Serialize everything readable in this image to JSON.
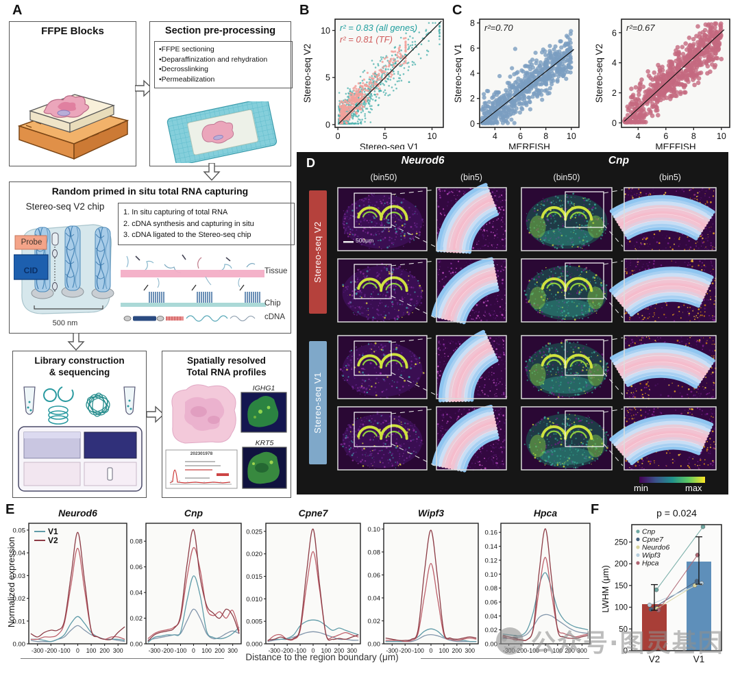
{
  "watermark": {
    "text": "公众号·图灵基因"
  },
  "panel_a": {
    "label": "A",
    "ffpe_title": "FFPE Blocks",
    "pre_title": "Section pre-processing",
    "pre_bullets": [
      "FFPE sectioning",
      "Deparaffinization and rehydration",
      "Decrosslinking",
      "Permeabilization"
    ],
    "capture_title": "Random primed in situ total RNA capturing",
    "chip_label": "Stereo-seq V2 chip",
    "probe_label": "Probe",
    "cid_label": "CID",
    "pitch_label": "500 nm",
    "steps": [
      "1. In situ capturing of total RNA",
      "2. cDNA synthesis and capturing in situ",
      "3. cDNA ligated to the Stereo-seq chip"
    ],
    "step_numbers": [
      "1",
      "2",
      "3"
    ],
    "tissue_label": "Tissue",
    "chip_line_label": "Chip",
    "cdna_label": "cDNA",
    "library_title1": "Library construction",
    "library_title2": "& sequencing",
    "profiles_title1": "Spatially resolved",
    "profiles_title2": "Total RNA profiles",
    "profile_gene1": "IGHG1",
    "profile_gene2": "KRT5",
    "qc_title": "202301978"
  },
  "panel_b": {
    "label": "B"
  },
  "panel_c": {
    "label": "C"
  },
  "panel_d": {
    "label": "D",
    "genes": [
      "Neurod6",
      "Cnp"
    ],
    "bin_headers": [
      "(bin50)",
      "(bin5)",
      "(bin50)",
      "(bin5)"
    ],
    "rows": [
      {
        "label": "Stereo-seq V2",
        "color": "#b5413c"
      },
      {
        "label": "Stereo-seq V1",
        "color": "#7fa8c9"
      }
    ],
    "scale_bar": "500μm",
    "cbar_min": "min",
    "cbar_max": "max"
  },
  "panel_e": {
    "label": "E",
    "ylabel": "Normalized expression",
    "xlabel": "Distance to the region boundary (μm)"
  },
  "panel_f": {
    "label": "F"
  },
  "chart_data": [
    {
      "id": "B",
      "type": "scatter",
      "xlabel": "Stereo-seq V1",
      "ylabel": "Stereo-seq V2",
      "xticks": [
        0,
        5,
        10
      ],
      "yticks": [
        0,
        5,
        10
      ],
      "xlim": [
        -0.3,
        11.2
      ],
      "ylim": [
        -0.3,
        11.2
      ],
      "annotations": [
        {
          "text": "r² = 0.83 (all genes)",
          "color": "#1f9e9e"
        },
        {
          "text": "r² = 0.81 (TF)",
          "color": "#cf5a5a"
        }
      ],
      "fit_line": [
        [
          0.1,
          0.1
        ],
        [
          11,
          11
        ]
      ],
      "series": [
        {
          "name": "all genes",
          "r2": 0.83,
          "color": "#4ab0ac",
          "n": 800,
          "dot": 1.3,
          "op": 0.75,
          "seed": 11
        },
        {
          "name": "TF",
          "r2": 0.81,
          "color": "#f2a19b",
          "n": 430,
          "dot": 1.6,
          "op": 0.85,
          "seed": 97
        }
      ]
    },
    {
      "id": "C1",
      "type": "scatter",
      "xlabel": "MERFISH",
      "ylabel": "Stereo-seq V1",
      "xticks": [
        4,
        6,
        8,
        10
      ],
      "yticks": [
        0,
        2,
        4,
        6,
        8
      ],
      "xlim": [
        2.8,
        10.6
      ],
      "ylim": [
        -0.3,
        8.3
      ],
      "annotations": [
        {
          "text": "r²=0.70",
          "color": "#222222"
        }
      ],
      "fit_line": [
        [
          2.9,
          0.05
        ],
        [
          10.2,
          5.9
        ]
      ],
      "series": [
        {
          "name": "genes",
          "r2": 0.7,
          "color": "#7b9dc0",
          "n": 620,
          "dot": 3.1,
          "op": 0.8,
          "seed": 5
        }
      ]
    },
    {
      "id": "C2",
      "type": "scatter",
      "xlabel": "MEFFISH",
      "ylabel": "Stereo-seq V2",
      "xticks": [
        4,
        6,
        8,
        10
      ],
      "yticks": [
        0,
        2,
        4,
        6
      ],
      "xlim": [
        2.8,
        10.6
      ],
      "ylim": [
        -0.3,
        6.9
      ],
      "annotations": [
        {
          "text": "r²=0.67",
          "color": "#222222"
        }
      ],
      "fit_line": [
        [
          3,
          0.1
        ],
        [
          10.2,
          6.2
        ]
      ],
      "series": [
        {
          "name": "genes",
          "r2": 0.67,
          "color": "#c4697f",
          "n": 680,
          "dot": 3.3,
          "op": 0.8,
          "seed": 23
        }
      ]
    },
    {
      "id": "E_Neurod6",
      "type": "line",
      "title": "Neurod6",
      "x": [
        -350,
        -300,
        -250,
        -200,
        -150,
        -100,
        -50,
        0,
        50,
        100,
        150,
        200,
        250,
        300,
        350
      ],
      "xticks": [
        -300,
        -200,
        -100,
        0,
        100,
        200,
        300
      ],
      "yticks": [
        0,
        0.01,
        0.02,
        0.03,
        0.04,
        0.05
      ],
      "ydec": 2,
      "ylim": [
        0,
        0.053
      ],
      "legend": [
        {
          "label": "V1",
          "color": "#5f9ba8"
        },
        {
          "label": "V2",
          "color": "#8c3b45"
        }
      ],
      "series": [
        {
          "name": "V1",
          "color": "#8295ab",
          "values": [
            0.0015,
            0.001,
            0.001,
            0.001,
            0.002,
            0.003,
            0.006,
            0.008,
            0.006,
            0.004,
            0.003,
            0.002,
            0.002,
            0.0015,
            0.001
          ]
        },
        {
          "name": "V1",
          "color": "#5f9ba8",
          "values": [
            0.002,
            0.002,
            0.0015,
            0.001,
            0.002,
            0.004,
            0.009,
            0.012,
            0.009,
            0.005,
            0.003,
            0.002,
            0.002,
            0.002,
            0.0015
          ]
        },
        {
          "name": "V2",
          "color": "#bd5f6a",
          "values": [
            0.002,
            0.002,
            0.003,
            0.003,
            0.004,
            0.009,
            0.026,
            0.042,
            0.024,
            0.006,
            0.003,
            0.002,
            0.003,
            0.003,
            0.002
          ]
        },
        {
          "name": "V2",
          "color": "#8c3b45",
          "values": [
            0.0045,
            0.003,
            0.005,
            0.006,
            0.006,
            0.01,
            0.03,
            0.049,
            0.028,
            0.006,
            0.003,
            0.002,
            0.002,
            0.005,
            0.0075
          ]
        }
      ]
    },
    {
      "id": "E_Cnp",
      "type": "line",
      "title": "Cnp",
      "x": [
        -350,
        -300,
        -250,
        -200,
        -150,
        -100,
        -50,
        0,
        50,
        100,
        150,
        200,
        250,
        300,
        350
      ],
      "xticks": [
        -300,
        -200,
        -100,
        0,
        100,
        200,
        300
      ],
      "yticks": [
        0,
        0.02,
        0.04,
        0.06,
        0.08
      ],
      "ydec": 2,
      "ylim": [
        0,
        0.094
      ],
      "series": [
        {
          "name": "V1",
          "color": "#8295ab",
          "values": [
            0.003,
            0.004,
            0.005,
            0.006,
            0.007,
            0.008,
            0.018,
            0.027,
            0.02,
            0.008,
            0.004,
            0.005,
            0.008,
            0.01,
            0.008
          ]
        },
        {
          "name": "V1",
          "color": "#5f9ba8",
          "values": [
            0.001,
            0.005,
            0.006,
            0.007,
            0.007,
            0.009,
            0.034,
            0.053,
            0.038,
            0.01,
            0.005,
            0.004,
            0.005,
            0.008,
            0.013
          ]
        },
        {
          "name": "V2",
          "color": "#bd5f6a",
          "values": [
            0.004,
            0.008,
            0.01,
            0.011,
            0.013,
            0.02,
            0.052,
            0.075,
            0.058,
            0.028,
            0.022,
            0.025,
            0.02,
            0.026,
            0.01
          ]
        },
        {
          "name": "V2",
          "color": "#8c3b45",
          "values": [
            0.002,
            0.007,
            0.009,
            0.01,
            0.012,
            0.022,
            0.062,
            0.089,
            0.052,
            0.03,
            0.024,
            0.02,
            0.027,
            0.022,
            0.008
          ]
        }
      ]
    },
    {
      "id": "E_Cpne7",
      "type": "line",
      "title": "Cpne7",
      "x": [
        -350,
        -300,
        -250,
        -200,
        -150,
        -100,
        -50,
        0,
        50,
        100,
        150,
        200,
        250,
        300,
        350
      ],
      "xticks": [
        -300,
        -200,
        -100,
        0,
        100,
        200,
        300
      ],
      "yticks": [
        0,
        0.005,
        0.01,
        0.015,
        0.02,
        0.025
      ],
      "ydec": 3,
      "ylim": [
        0,
        0.0268
      ],
      "series": [
        {
          "name": "V1",
          "color": "#8295ab",
          "values": [
            0.0005,
            0.0008,
            0.001,
            0.001,
            0.0015,
            0.002,
            0.0025,
            0.0027,
            0.0025,
            0.002,
            0.0015,
            0.001,
            0.001,
            0.0008,
            0.0008
          ]
        },
        {
          "name": "V1",
          "color": "#5f9ba8",
          "values": [
            0.0008,
            0.001,
            0.001,
            0.0012,
            0.002,
            0.004,
            0.005,
            0.0053,
            0.005,
            0.004,
            0.003,
            0.0035,
            0.003,
            0.0025,
            0.002
          ]
        },
        {
          "name": "V2",
          "color": "#bd5f6a",
          "values": [
            0.0006,
            0.0018,
            0.002,
            0.001,
            0.001,
            0.003,
            0.013,
            0.0205,
            0.012,
            0.002,
            0.0015,
            0.002,
            0.0025,
            0.002,
            0.0015
          ]
        },
        {
          "name": "V2",
          "color": "#8c3b45",
          "values": [
            0.0008,
            0.001,
            0.0015,
            0.001,
            0.0012,
            0.0035,
            0.016,
            0.0255,
            0.013,
            0.002,
            0.001,
            0.0012,
            0.001,
            0.0015,
            0.002
          ]
        }
      ]
    },
    {
      "id": "E_Wipf3",
      "type": "line",
      "title": "Wipf3",
      "x": [
        -350,
        -300,
        -250,
        -200,
        -150,
        -100,
        -50,
        0,
        50,
        100,
        150,
        200,
        250,
        300,
        350
      ],
      "xticks": [
        -300,
        -200,
        -100,
        0,
        100,
        200,
        300
      ],
      "yticks": [
        0,
        0.02,
        0.04,
        0.06,
        0.08,
        0.1
      ],
      "ydec": 2,
      "ylim": [
        0,
        0.105
      ],
      "series": [
        {
          "name": "V1",
          "color": "#8295ab",
          "values": [
            0.002,
            0.002,
            0.002,
            0.002,
            0.002,
            0.004,
            0.007,
            0.008,
            0.007,
            0.005,
            0.003,
            0.002,
            0.002,
            0.002,
            0.002
          ]
        },
        {
          "name": "V1",
          "color": "#5f9ba8",
          "values": [
            0.002,
            0.002,
            0.002,
            0.002,
            0.003,
            0.006,
            0.011,
            0.013,
            0.011,
            0.006,
            0.004,
            0.003,
            0.003,
            0.002,
            0.002
          ]
        },
        {
          "name": "V2",
          "color": "#bd5f6a",
          "values": [
            0.003,
            0.003,
            0.003,
            0.002,
            0.003,
            0.009,
            0.042,
            0.07,
            0.04,
            0.008,
            0.004,
            0.003,
            0.004,
            0.005,
            0.004
          ]
        },
        {
          "name": "V2",
          "color": "#8c3b45",
          "values": [
            0.005,
            0.004,
            0.003,
            0.003,
            0.004,
            0.012,
            0.063,
            0.099,
            0.058,
            0.01,
            0.005,
            0.004,
            0.005,
            0.006,
            0.005
          ]
        }
      ]
    },
    {
      "id": "E_Hpca",
      "type": "line",
      "title": "Hpca",
      "x": [
        -350,
        -300,
        -250,
        -200,
        -150,
        -100,
        -50,
        0,
        50,
        100,
        150,
        200,
        250,
        300,
        350
      ],
      "xticks": [
        -300,
        -200,
        -100,
        0,
        100,
        200,
        300
      ],
      "yticks": [
        0,
        0.02,
        0.04,
        0.06,
        0.08,
        0.1,
        0.12,
        0.14,
        0.16
      ],
      "ydec": 2,
      "ylim": [
        0,
        0.173
      ],
      "series": [
        {
          "name": "V1",
          "color": "#8295ab",
          "values": [
            0.008,
            0.008,
            0.009,
            0.01,
            0.014,
            0.025,
            0.038,
            0.042,
            0.04,
            0.034,
            0.028,
            0.022,
            0.018,
            0.016,
            0.015
          ]
        },
        {
          "name": "V1",
          "color": "#5f9ba8",
          "values": [
            0.014,
            0.013,
            0.012,
            0.012,
            0.02,
            0.045,
            0.085,
            0.102,
            0.08,
            0.05,
            0.035,
            0.028,
            0.024,
            0.022,
            0.02
          ]
        },
        {
          "name": "V2",
          "color": "#bd5f6a",
          "values": [
            0.01,
            0.008,
            0.006,
            0.005,
            0.006,
            0.02,
            0.08,
            0.124,
            0.072,
            0.022,
            0.015,
            0.012,
            0.01,
            0.012,
            0.014
          ]
        },
        {
          "name": "V2",
          "color": "#8c3b45",
          "values": [
            0.012,
            0.01,
            0.008,
            0.006,
            0.006,
            0.022,
            0.105,
            0.165,
            0.095,
            0.02,
            0.01,
            0.008,
            0.008,
            0.01,
            0.012
          ]
        }
      ]
    },
    {
      "id": "F",
      "type": "bar",
      "title": "p = 0.024",
      "ylabel": "LWHM (μm)",
      "categories": [
        "V2",
        "V1"
      ],
      "values": [
        107,
        205
      ],
      "bar_colors": [
        "#a83e37",
        "#5e8fba"
      ],
      "error_low": [
        93,
        153
      ],
      "error_high": [
        152,
        262
      ],
      "yticks": [
        0,
        50,
        100,
        150,
        200,
        250
      ],
      "ylim": [
        0,
        290
      ],
      "gene_lines": [
        {
          "name": "Cnp",
          "color": "#6fa8a2",
          "v2": 140,
          "v1": 285
        },
        {
          "name": "Cpne7",
          "color": "#46627f",
          "v2": 95,
          "v1": 160
        },
        {
          "name": "Neurdo6",
          "color": "#d9d49e",
          "v2": 97,
          "v1": 150
        },
        {
          "name": "Wipf3",
          "color": "#b7cedd",
          "v2": 105,
          "v1": 155
        },
        {
          "name": "Hpca",
          "color": "#ad6572",
          "v2": 93,
          "v1": 220
        }
      ]
    }
  ]
}
